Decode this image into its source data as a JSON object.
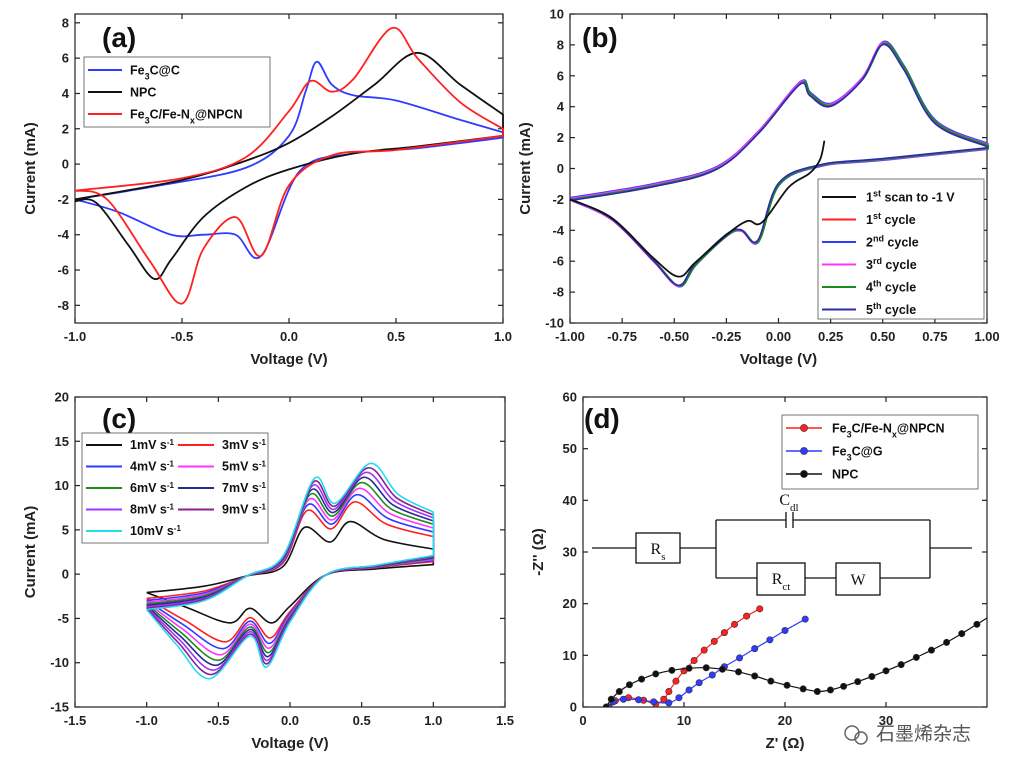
{
  "watermark": "石墨烯杂志",
  "chart_data": [
    {
      "id": "a",
      "type": "line",
      "panel_label": "(a)",
      "xlabel": "Voltage (V)",
      "ylabel": "Current (mA)",
      "xlim": [
        -1.0,
        1.0
      ],
      "ylim": [
        -9,
        8.5
      ],
      "xticks": [
        -1.0,
        -0.5,
        0.0,
        0.5,
        1.0
      ],
      "xtick_labels": [
        "-1.0",
        "-0.5",
        "0.0",
        "0.5",
        "1.0"
      ],
      "yticks": [
        -8,
        -6,
        -4,
        -2,
        0,
        2,
        4,
        6,
        8
      ],
      "ytick_labels": [
        "-8",
        "-6",
        "-4",
        "-2",
        "0",
        "2",
        "4",
        "6",
        "8"
      ],
      "legend_position": "top-left",
      "series": [
        {
          "name": "Fe3C@C",
          "legend": {
            "base": "Fe",
            "sub": "3",
            "rest": "C@C"
          },
          "color": "#2f3cff",
          "upper": [
            [
              -1.0,
              -2.0
            ],
            [
              -0.6,
              -1.2
            ],
            [
              -0.2,
              -0.2
            ],
            [
              0.0,
              1.6
            ],
            [
              0.08,
              4.2
            ],
            [
              0.13,
              5.8
            ],
            [
              0.2,
              4.5
            ],
            [
              0.3,
              3.9
            ],
            [
              0.5,
              3.6
            ],
            [
              0.8,
              2.5
            ],
            [
              1.0,
              1.8
            ]
          ],
          "lower": [
            [
              1.0,
              1.5
            ],
            [
              0.6,
              0.9
            ],
            [
              0.3,
              0.6
            ],
            [
              0.05,
              -0.4
            ],
            [
              -0.13,
              -5.2
            ],
            [
              -0.25,
              -4.0
            ],
            [
              -0.4,
              -4.0
            ],
            [
              -0.55,
              -4.0
            ],
            [
              -0.8,
              -2.7
            ],
            [
              -1.0,
              -2.0
            ]
          ]
        },
        {
          "name": "NPC",
          "legend": {
            "base": "NPC",
            "sub": "",
            "rest": ""
          },
          "color": "#111111",
          "upper": [
            [
              -1.0,
              -2.0
            ],
            [
              -0.5,
              -0.9
            ],
            [
              -0.2,
              0.2
            ],
            [
              0.0,
              1.2
            ],
            [
              0.2,
              2.7
            ],
            [
              0.4,
              4.5
            ],
            [
              0.6,
              6.3
            ],
            [
              0.8,
              4.5
            ],
            [
              1.0,
              2.8
            ]
          ],
          "lower": [
            [
              1.0,
              1.6
            ],
            [
              0.6,
              1.0
            ],
            [
              0.3,
              0.6
            ],
            [
              0.0,
              -0.3
            ],
            [
              -0.2,
              -1.3
            ],
            [
              -0.4,
              -3.0
            ],
            [
              -0.55,
              -5.4
            ],
            [
              -0.63,
              -6.5
            ],
            [
              -0.75,
              -4.6
            ],
            [
              -0.9,
              -2.2
            ],
            [
              -1.0,
              -2.1
            ]
          ]
        },
        {
          "name": "Fe3C/Fe-Nx@NPCN",
          "legend": {
            "base": "Fe",
            "sub": "3",
            "rest": "C/Fe-N",
            "sub2": "x",
            "rest2": "@NPCN"
          },
          "color": "#ff2020",
          "upper": [
            [
              -1.0,
              -1.5
            ],
            [
              -0.5,
              -0.8
            ],
            [
              -0.2,
              0.4
            ],
            [
              0.0,
              3.0
            ],
            [
              0.1,
              4.7
            ],
            [
              0.2,
              4.1
            ],
            [
              0.3,
              4.8
            ],
            [
              0.48,
              7.7
            ],
            [
              0.6,
              6.0
            ],
            [
              0.8,
              3.5
            ],
            [
              1.0,
              2.0
            ]
          ],
          "lower": [
            [
              1.0,
              1.6
            ],
            [
              0.5,
              0.8
            ],
            [
              0.2,
              0.5
            ],
            [
              0.0,
              -1.2
            ],
            [
              -0.13,
              -5.2
            ],
            [
              -0.25,
              -3.0
            ],
            [
              -0.4,
              -4.8
            ],
            [
              -0.5,
              -7.9
            ],
            [
              -0.65,
              -5.5
            ],
            [
              -0.85,
              -2.0
            ],
            [
              -1.0,
              -1.5
            ]
          ]
        }
      ]
    },
    {
      "id": "b",
      "type": "line",
      "panel_label": "(b)",
      "xlabel": "Voltage (V)",
      "ylabel": "Current (mA)",
      "xlim": [
        -1.0,
        1.0
      ],
      "ylim": [
        -10,
        10
      ],
      "xticks": [
        -1.0,
        -0.75,
        -0.5,
        -0.25,
        0.0,
        0.25,
        0.5,
        0.75,
        1.0
      ],
      "xtick_labels": [
        "-1.00",
        "-0.75",
        "-0.50",
        "-0.25",
        "0.00",
        "0.25",
        "0.50",
        "0.75",
        "1.00"
      ],
      "yticks": [
        -10,
        -8,
        -6,
        -4,
        -2,
        0,
        2,
        4,
        6,
        8,
        10
      ],
      "ytick_labels": [
        "-10",
        "-8",
        "-6",
        "-4",
        "-2",
        "0",
        "2",
        "4",
        "6",
        "8",
        "10"
      ],
      "legend_position": "bottom-right",
      "cycle_curve": {
        "upper": [
          [
            -1.0,
            -2.0
          ],
          [
            -0.6,
            -1.1
          ],
          [
            -0.3,
            0.0
          ],
          [
            -0.1,
            2.3
          ],
          [
            0.1,
            5.5
          ],
          [
            0.15,
            4.8
          ],
          [
            0.25,
            4.1
          ],
          [
            0.4,
            5.8
          ],
          [
            0.5,
            8.1
          ],
          [
            0.6,
            6.5
          ],
          [
            0.75,
            3.0
          ],
          [
            1.0,
            1.5
          ]
        ],
        "lower": [
          [
            1.0,
            1.3
          ],
          [
            0.5,
            0.6
          ],
          [
            0.2,
            0.2
          ],
          [
            0.0,
            -1.0
          ],
          [
            -0.1,
            -4.7
          ],
          [
            -0.18,
            -4.0
          ],
          [
            -0.25,
            -4.3
          ],
          [
            -0.4,
            -6.2
          ],
          [
            -0.48,
            -7.6
          ],
          [
            -0.6,
            -6.0
          ],
          [
            -0.8,
            -3.3
          ],
          [
            -1.0,
            -2.0
          ]
        ]
      },
      "first_scan": [
        [
          0.22,
          1.8
        ],
        [
          0.2,
          0.6
        ],
        [
          0.15,
          -0.3
        ],
        [
          0.05,
          -1.2
        ],
        [
          -0.08,
          -3.5
        ],
        [
          -0.15,
          -3.4
        ],
        [
          -0.25,
          -4.3
        ],
        [
          -0.4,
          -6.1
        ],
        [
          -0.48,
          -7.0
        ],
        [
          -0.6,
          -5.8
        ],
        [
          -0.8,
          -3.2
        ],
        [
          -1.0,
          -2.0
        ]
      ],
      "series": [
        {
          "name": "1st scan to -1 V",
          "legend": {
            "n": "1",
            "sup": "st",
            "rest": " scan to -1 V"
          },
          "color": "#111111"
        },
        {
          "name": "1st cycle",
          "legend": {
            "n": "1",
            "sup": "st",
            "rest": " cycle"
          },
          "color": "#ff2020"
        },
        {
          "name": "2nd cycle",
          "legend": {
            "n": "2",
            "sup": "nd",
            "rest": " cycle"
          },
          "color": "#2f3cff"
        },
        {
          "name": "3rd cycle",
          "legend": {
            "n": "3",
            "sup": "rd",
            "rest": " cycle"
          },
          "color": "#ff33ff"
        },
        {
          "name": "4th cycle",
          "legend": {
            "n": "4",
            "sup": "th",
            "rest": " cycle"
          },
          "color": "#1a8c1a"
        },
        {
          "name": "5th cycle",
          "legend": {
            "n": "5",
            "sup": "th",
            "rest": " cycle"
          },
          "color": "#2a2ab0"
        }
      ]
    },
    {
      "id": "c",
      "type": "line",
      "panel_label": "(c)",
      "xlabel": "Voltage (V)",
      "ylabel": "Current (mA)",
      "xlim": [
        -1.5,
        1.5
      ],
      "ylim": [
        -15,
        20
      ],
      "xticks": [
        -1.5,
        -1.0,
        -0.5,
        0.0,
        0.5,
        1.0,
        1.5
      ],
      "xtick_labels": [
        "-1.5",
        "-1.0",
        "-0.5",
        "0.0",
        "0.5",
        "1.0",
        "1.5"
      ],
      "yticks": [
        -15,
        -10,
        -5,
        0,
        5,
        10,
        15,
        20
      ],
      "ytick_labels": [
        "-15",
        "-10",
        "-5",
        "0",
        "5",
        "10",
        "15",
        "20"
      ],
      "legend_position": "top-left",
      "series": [
        {
          "name": "1mV s-1",
          "rate": 1,
          "color": "#111111"
        },
        {
          "name": "3mV s-1",
          "rate": 3,
          "color": "#ff2020"
        },
        {
          "name": "4mV s-1",
          "rate": 4,
          "color": "#2f3cff"
        },
        {
          "name": "5mV s-1",
          "rate": 5,
          "color": "#ff33ff"
        },
        {
          "name": "6mV s-1",
          "rate": 6,
          "color": "#1a8c1a"
        },
        {
          "name": "7mV s-1",
          "rate": 7,
          "color": "#2a2a90"
        },
        {
          "name": "8mV s-1",
          "rate": 8,
          "color": "#a033ff"
        },
        {
          "name": "9mV s-1",
          "rate": 9,
          "color": "#8a2090"
        },
        {
          "name": "10mV s-1",
          "rate": 10,
          "color": "#22ddee"
        }
      ],
      "legend_labels": [
        {
          "value": "1mV s",
          "sup": "-1"
        },
        {
          "value": "3mV s",
          "sup": "-1"
        },
        {
          "value": "4mV s",
          "sup": "-1"
        },
        {
          "value": "5mV s",
          "sup": "-1"
        },
        {
          "value": "6mV s",
          "sup": "-1"
        },
        {
          "value": "7mV s",
          "sup": "-1"
        },
        {
          "value": "8mV s",
          "sup": "-1"
        },
        {
          "value": "9mV s",
          "sup": "-1"
        },
        {
          "value": "10mV s",
          "sup": "-1"
        }
      ]
    },
    {
      "id": "d",
      "type": "scatter",
      "panel_label": "(d)",
      "xlabel": "Z' (Ω)",
      "ylabel": "-Z'' (Ω)",
      "xlim": [
        0,
        40
      ],
      "ylim": [
        0,
        60
      ],
      "xticks": [
        0,
        10,
        20,
        30
      ],
      "xtick_labels": [
        "0",
        "10",
        "20",
        "30"
      ],
      "yticks": [
        0,
        10,
        20,
        30,
        40,
        50,
        60
      ],
      "ytick_labels": [
        "0",
        "10",
        "20",
        "30",
        "40",
        "50",
        "60"
      ],
      "legend_position": "top-right",
      "series": [
        {
          "name": "Fe3C/Fe-Nx@NPCN",
          "color": "#ff2020",
          "legend": {
            "base": "Fe",
            "sub": "3",
            "rest": "C/Fe-N",
            "sub2": "x",
            "rest2": "@NPCN"
          },
          "points": [
            [
              2.6,
              0.0
            ],
            [
              3.2,
              1.2
            ],
            [
              4.5,
              1.8
            ],
            [
              6.0,
              1.3
            ],
            [
              7.2,
              0.6
            ],
            [
              8.0,
              1.5
            ],
            [
              8.5,
              3.0
            ],
            [
              9.2,
              5.0
            ],
            [
              10.0,
              7.0
            ],
            [
              11.0,
              9.0
            ],
            [
              12.0,
              11.0
            ],
            [
              13.0,
              12.7
            ],
            [
              14.0,
              14.4
            ],
            [
              15.0,
              16.0
            ],
            [
              16.2,
              17.6
            ],
            [
              17.5,
              19.0
            ]
          ]
        },
        {
          "name": "Fe3C@G",
          "color": "#2f3cff",
          "legend": {
            "base": "Fe",
            "sub": "3",
            "rest": "C@G"
          },
          "points": [
            [
              2.5,
              0.0
            ],
            [
              3.0,
              1.0
            ],
            [
              4.0,
              1.5
            ],
            [
              5.5,
              1.4
            ],
            [
              7.0,
              1.0
            ],
            [
              8.5,
              0.8
            ],
            [
              9.5,
              1.8
            ],
            [
              10.5,
              3.3
            ],
            [
              11.5,
              4.7
            ],
            [
              12.8,
              6.2
            ],
            [
              14.0,
              7.8
            ],
            [
              15.5,
              9.5
            ],
            [
              17.0,
              11.3
            ],
            [
              18.5,
              13.0
            ],
            [
              20.0,
              14.8
            ],
            [
              22.0,
              17.0
            ]
          ]
        },
        {
          "name": "NPC",
          "color": "#111111",
          "legend": {
            "base": "NPC"
          },
          "points": [
            [
              2.3,
              0.0
            ],
            [
              2.8,
              1.5
            ],
            [
              3.6,
              3.0
            ],
            [
              4.6,
              4.3
            ],
            [
              5.8,
              5.4
            ],
            [
              7.2,
              6.4
            ],
            [
              8.8,
              7.1
            ],
            [
              10.5,
              7.5
            ],
            [
              12.2,
              7.6
            ],
            [
              13.8,
              7.3
            ],
            [
              15.4,
              6.8
            ],
            [
              17.0,
              6.0
            ],
            [
              18.6,
              5.0
            ],
            [
              20.2,
              4.2
            ],
            [
              21.8,
              3.5
            ],
            [
              23.2,
              3.0
            ],
            [
              24.5,
              3.3
            ],
            [
              25.8,
              4.0
            ],
            [
              27.2,
              4.9
            ],
            [
              28.6,
              5.9
            ],
            [
              30.0,
              7.0
            ],
            [
              31.5,
              8.2
            ],
            [
              33.0,
              9.6
            ],
            [
              34.5,
              11.0
            ],
            [
              36.0,
              12.5
            ],
            [
              37.5,
              14.2
            ],
            [
              39.0,
              16.0
            ],
            [
              40.6,
              18.0
            ],
            [
              42.2,
              20.0
            ]
          ]
        }
      ],
      "circuit": {
        "rs": {
          "main": "R",
          "sub": "s"
        },
        "cdl": {
          "main": "C",
          "sub": "dl"
        },
        "rct": {
          "main": "R",
          "sub": "ct"
        },
        "w": "W"
      }
    }
  ]
}
